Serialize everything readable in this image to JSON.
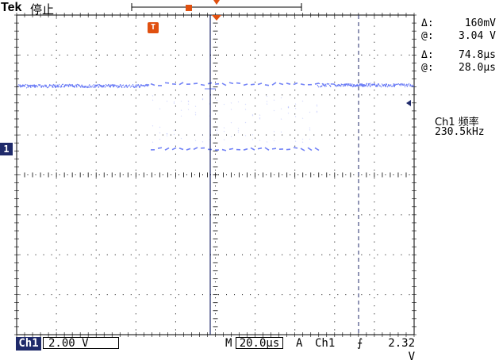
{
  "header": {
    "brand": "Tek",
    "status": "停止"
  },
  "measurements": {
    "voltage_delta_label": "Δ:",
    "voltage_delta_value": "160mV",
    "voltage_at_label": "@:",
    "voltage_at_value": "3.04 V",
    "time_delta_label": "Δ:",
    "time_delta_value": "74.8µs",
    "time_at_label": "@:",
    "time_at_value": "28.0µs"
  },
  "frequency": {
    "title": "Ch1 频率",
    "value": "230.5kHz"
  },
  "markers": {
    "channel": "1",
    "trigger": "T"
  },
  "bottom_bar": {
    "channel_tag": "Ch1",
    "channel_scale": "2.00 V",
    "timebase_label": "M",
    "timebase_value": "20.0µs",
    "trigger_label": "A",
    "trigger_channel": "Ch1",
    "trigger_slope": "⨍",
    "trigger_level": "2.32 V"
  },
  "colors": {
    "trace": "#5b6ef5",
    "cursor": "#1f2a6a",
    "trigger": "#e05010",
    "grid": "#000000"
  }
}
